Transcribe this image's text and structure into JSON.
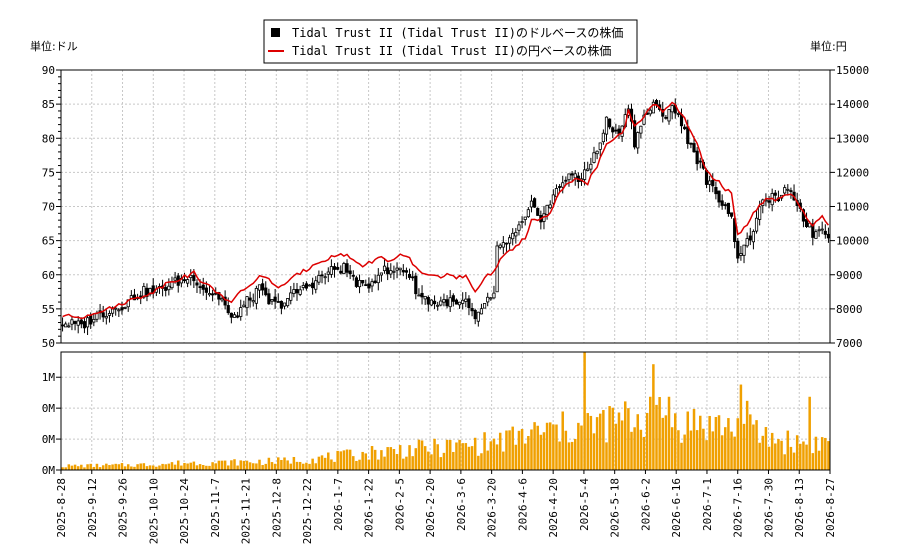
{
  "colors": {
    "candle_up_fill": "#ffffff",
    "candle_down_fill": "#000000",
    "candle_stroke": "#000000",
    "yen_line": "#dd0000",
    "volume_bar": "#f0a000",
    "grid": "#c8c8c8",
    "background": "#ffffff"
  },
  "chart_data": [
    {
      "type": "candlestick",
      "legend": [
        {
          "label": "Tidal Trust II (Tidal Trust II)のドルベースの株価",
          "marker": "black-square"
        },
        {
          "label": "Tidal Trust II (Tidal Trust II)の円ベースの株価",
          "marker": "red-line"
        }
      ],
      "legend_placement": "top-center",
      "left_unit": "単位:ドル",
      "right_unit": "単位:円",
      "y_left": {
        "min": 50,
        "max": 90,
        "ticks": [
          50,
          55,
          60,
          65,
          70,
          75,
          80,
          85,
          90
        ]
      },
      "y_right": {
        "min": 7000,
        "max": 15000,
        "ticks": [
          7000,
          8000,
          9000,
          10000,
          11000,
          12000,
          13000,
          14000,
          15000
        ]
      },
      "grid": true,
      "x_labels": [
        "2025-8-28",
        "2025-9-12",
        "2025-9-26",
        "2025-10-10",
        "2025-10-24",
        "2025-11-7",
        "2025-11-21",
        "2025-12-8",
        "2025-12-22",
        "2026-1-7",
        "2026-1-22",
        "2026-2-5",
        "2026-2-20",
        "2026-3-6",
        "2026-3-20",
        "2026-4-6",
        "2026-4-20",
        "2026-5-4",
        "2026-5-18",
        "2026-6-2",
        "2026-6-16",
        "2026-7-1",
        "2026-7-16",
        "2026-7-30",
        "2026-8-13",
        "2026-8-27"
      ],
      "close_keypoints_usd": [
        [
          0,
          53.0
        ],
        [
          6,
          52.5
        ],
        [
          10,
          53.8
        ],
        [
          15,
          54.8
        ],
        [
          20,
          55.8
        ],
        [
          25,
          57.5
        ],
        [
          30,
          57.5
        ],
        [
          34,
          58.5
        ],
        [
          38,
          59.2
        ],
        [
          42,
          59.8
        ],
        [
          45,
          58.0
        ],
        [
          48,
          57.2
        ],
        [
          51,
          56.5
        ],
        [
          54,
          53.2
        ],
        [
          57,
          55.0
        ],
        [
          60,
          56.5
        ],
        [
          63,
          57.8
        ],
        [
          66,
          56.0
        ],
        [
          69,
          55.5
        ],
        [
          72,
          56.5
        ],
        [
          75,
          57.5
        ],
        [
          78,
          58.2
        ],
        [
          81,
          59.2
        ],
        [
          84,
          60.0
        ],
        [
          87,
          60.8
        ],
        [
          90,
          61.0
        ],
        [
          93,
          59.5
        ],
        [
          96,
          58.0
        ],
        [
          99,
          59.0
        ],
        [
          102,
          60.8
        ],
        [
          105,
          60.2
        ],
        [
          108,
          61.2
        ],
        [
          111,
          60.0
        ],
        [
          114,
          57.0
        ],
        [
          117,
          56.3
        ],
        [
          120,
          55.8
        ],
        [
          123,
          56.2
        ],
        [
          126,
          55.5
        ],
        [
          129,
          56.0
        ],
        [
          132,
          53.0
        ],
        [
          135,
          56.0
        ],
        [
          138,
          56.8
        ],
        [
          139,
          63.5
        ],
        [
          142,
          64.8
        ],
        [
          145,
          66.0
        ],
        [
          148,
          68.0
        ],
        [
          150,
          70.0
        ],
        [
          153,
          68.5
        ],
        [
          156,
          70.5
        ],
        [
          159,
          73.0
        ],
        [
          162,
          75.0
        ],
        [
          165,
          73.5
        ],
        [
          168,
          76.0
        ],
        [
          171,
          78.0
        ],
        [
          174,
          82.5
        ],
        [
          177,
          80.5
        ],
        [
          180,
          83.0
        ],
        [
          181,
          85.0
        ],
        [
          183,
          79.5
        ],
        [
          186,
          83.0
        ],
        [
          189,
          85.0
        ],
        [
          192,
          83.0
        ],
        [
          195,
          85.0
        ],
        [
          198,
          82.0
        ],
        [
          200,
          80.0
        ],
        [
          203,
          77.0
        ],
        [
          206,
          74.0
        ],
        [
          209,
          71.5
        ],
        [
          212,
          70.5
        ],
        [
          214,
          68.0
        ],
        [
          216,
          63.0
        ],
        [
          219,
          64.5
        ],
        [
          222,
          68.0
        ],
        [
          225,
          71.5
        ],
        [
          228,
          71.0
        ],
        [
          231,
          72.0
        ],
        [
          234,
          71.5
        ],
        [
          237,
          68.5
        ],
        [
          240,
          66.0
        ],
        [
          243,
          67.0
        ],
        [
          245,
          66.0
        ]
      ],
      "yen_keypoints_jpy": [
        [
          0,
          7800
        ],
        [
          6,
          7750
        ],
        [
          10,
          7900
        ],
        [
          15,
          8000
        ],
        [
          20,
          8200
        ],
        [
          25,
          8350
        ],
        [
          30,
          8550
        ],
        [
          34,
          8800
        ],
        [
          38,
          8900
        ],
        [
          42,
          9050
        ],
        [
          45,
          8750
        ],
        [
          48,
          8600
        ],
        [
          51,
          8400
        ],
        [
          54,
          8150
        ],
        [
          57,
          8500
        ],
        [
          60,
          8700
        ],
        [
          63,
          8950
        ],
        [
          66,
          8850
        ],
        [
          69,
          8650
        ],
        [
          72,
          8750
        ],
        [
          75,
          9000
        ],
        [
          78,
          9150
        ],
        [
          81,
          9350
        ],
        [
          84,
          9450
        ],
        [
          87,
          9550
        ],
        [
          90,
          9600
        ],
        [
          93,
          9450
        ],
        [
          96,
          9250
        ],
        [
          99,
          9400
        ],
        [
          102,
          9500
        ],
        [
          105,
          9400
        ],
        [
          108,
          9550
        ],
        [
          111,
          9450
        ],
        [
          114,
          9100
        ],
        [
          117,
          9000
        ],
        [
          120,
          8950
        ],
        [
          123,
          9000
        ],
        [
          126,
          8900
        ],
        [
          129,
          8950
        ],
        [
          132,
          8450
        ],
        [
          135,
          8950
        ],
        [
          138,
          9100
        ],
        [
          139,
          9300
        ],
        [
          142,
          9600
        ],
        [
          145,
          9850
        ],
        [
          148,
          10100
        ],
        [
          150,
          10600
        ],
        [
          153,
          10600
        ],
        [
          156,
          10800
        ],
        [
          159,
          11400
        ],
        [
          162,
          11700
        ],
        [
          165,
          11800
        ],
        [
          168,
          11700
        ],
        [
          171,
          12200
        ],
        [
          174,
          12800
        ],
        [
          177,
          13000
        ],
        [
          180,
          13300
        ],
        [
          181,
          13800
        ],
        [
          183,
          13400
        ],
        [
          186,
          13600
        ],
        [
          189,
          14000
        ],
        [
          192,
          13800
        ],
        [
          195,
          14100
        ],
        [
          198,
          13700
        ],
        [
          200,
          13400
        ],
        [
          203,
          12800
        ],
        [
          206,
          12000
        ],
        [
          209,
          11800
        ],
        [
          212,
          11500
        ],
        [
          214,
          11400
        ],
        [
          216,
          10150
        ],
        [
          219,
          10500
        ],
        [
          222,
          10900
        ],
        [
          225,
          11200
        ],
        [
          228,
          11200
        ],
        [
          231,
          11300
        ],
        [
          234,
          11300
        ],
        [
          237,
          10800
        ],
        [
          240,
          10400
        ],
        [
          243,
          10750
        ],
        [
          245,
          10500
        ]
      ]
    },
    {
      "type": "bar",
      "y_tick_labels": [
        "0M",
        "0M",
        "0M",
        "1M"
      ],
      "y_max_millions": 1.45,
      "volume_keypoints_millions": [
        [
          0,
          0.05
        ],
        [
          20,
          0.06
        ],
        [
          30,
          0.07
        ],
        [
          40,
          0.09
        ],
        [
          50,
          0.09
        ],
        [
          60,
          0.1
        ],
        [
          70,
          0.11
        ],
        [
          80,
          0.14
        ],
        [
          90,
          0.17
        ],
        [
          100,
          0.22
        ],
        [
          110,
          0.25
        ],
        [
          120,
          0.27
        ],
        [
          130,
          0.3
        ],
        [
          140,
          0.35
        ],
        [
          150,
          0.45
        ],
        [
          160,
          0.5
        ],
        [
          170,
          0.55
        ],
        [
          180,
          0.62
        ],
        [
          190,
          0.64
        ],
        [
          200,
          0.58
        ],
        [
          210,
          0.55
        ],
        [
          220,
          0.48
        ],
        [
          230,
          0.35
        ],
        [
          240,
          0.33
        ],
        [
          245,
          0.35
        ]
      ],
      "volume_spikes_millions": [
        [
          167,
          1.45
        ],
        [
          168,
          0.7
        ],
        [
          188,
          0.9
        ],
        [
          189,
          1.3
        ],
        [
          190,
          0.8
        ],
        [
          194,
          0.9
        ],
        [
          217,
          1.05
        ],
        [
          219,
          0.85
        ],
        [
          239,
          0.9
        ]
      ]
    }
  ]
}
